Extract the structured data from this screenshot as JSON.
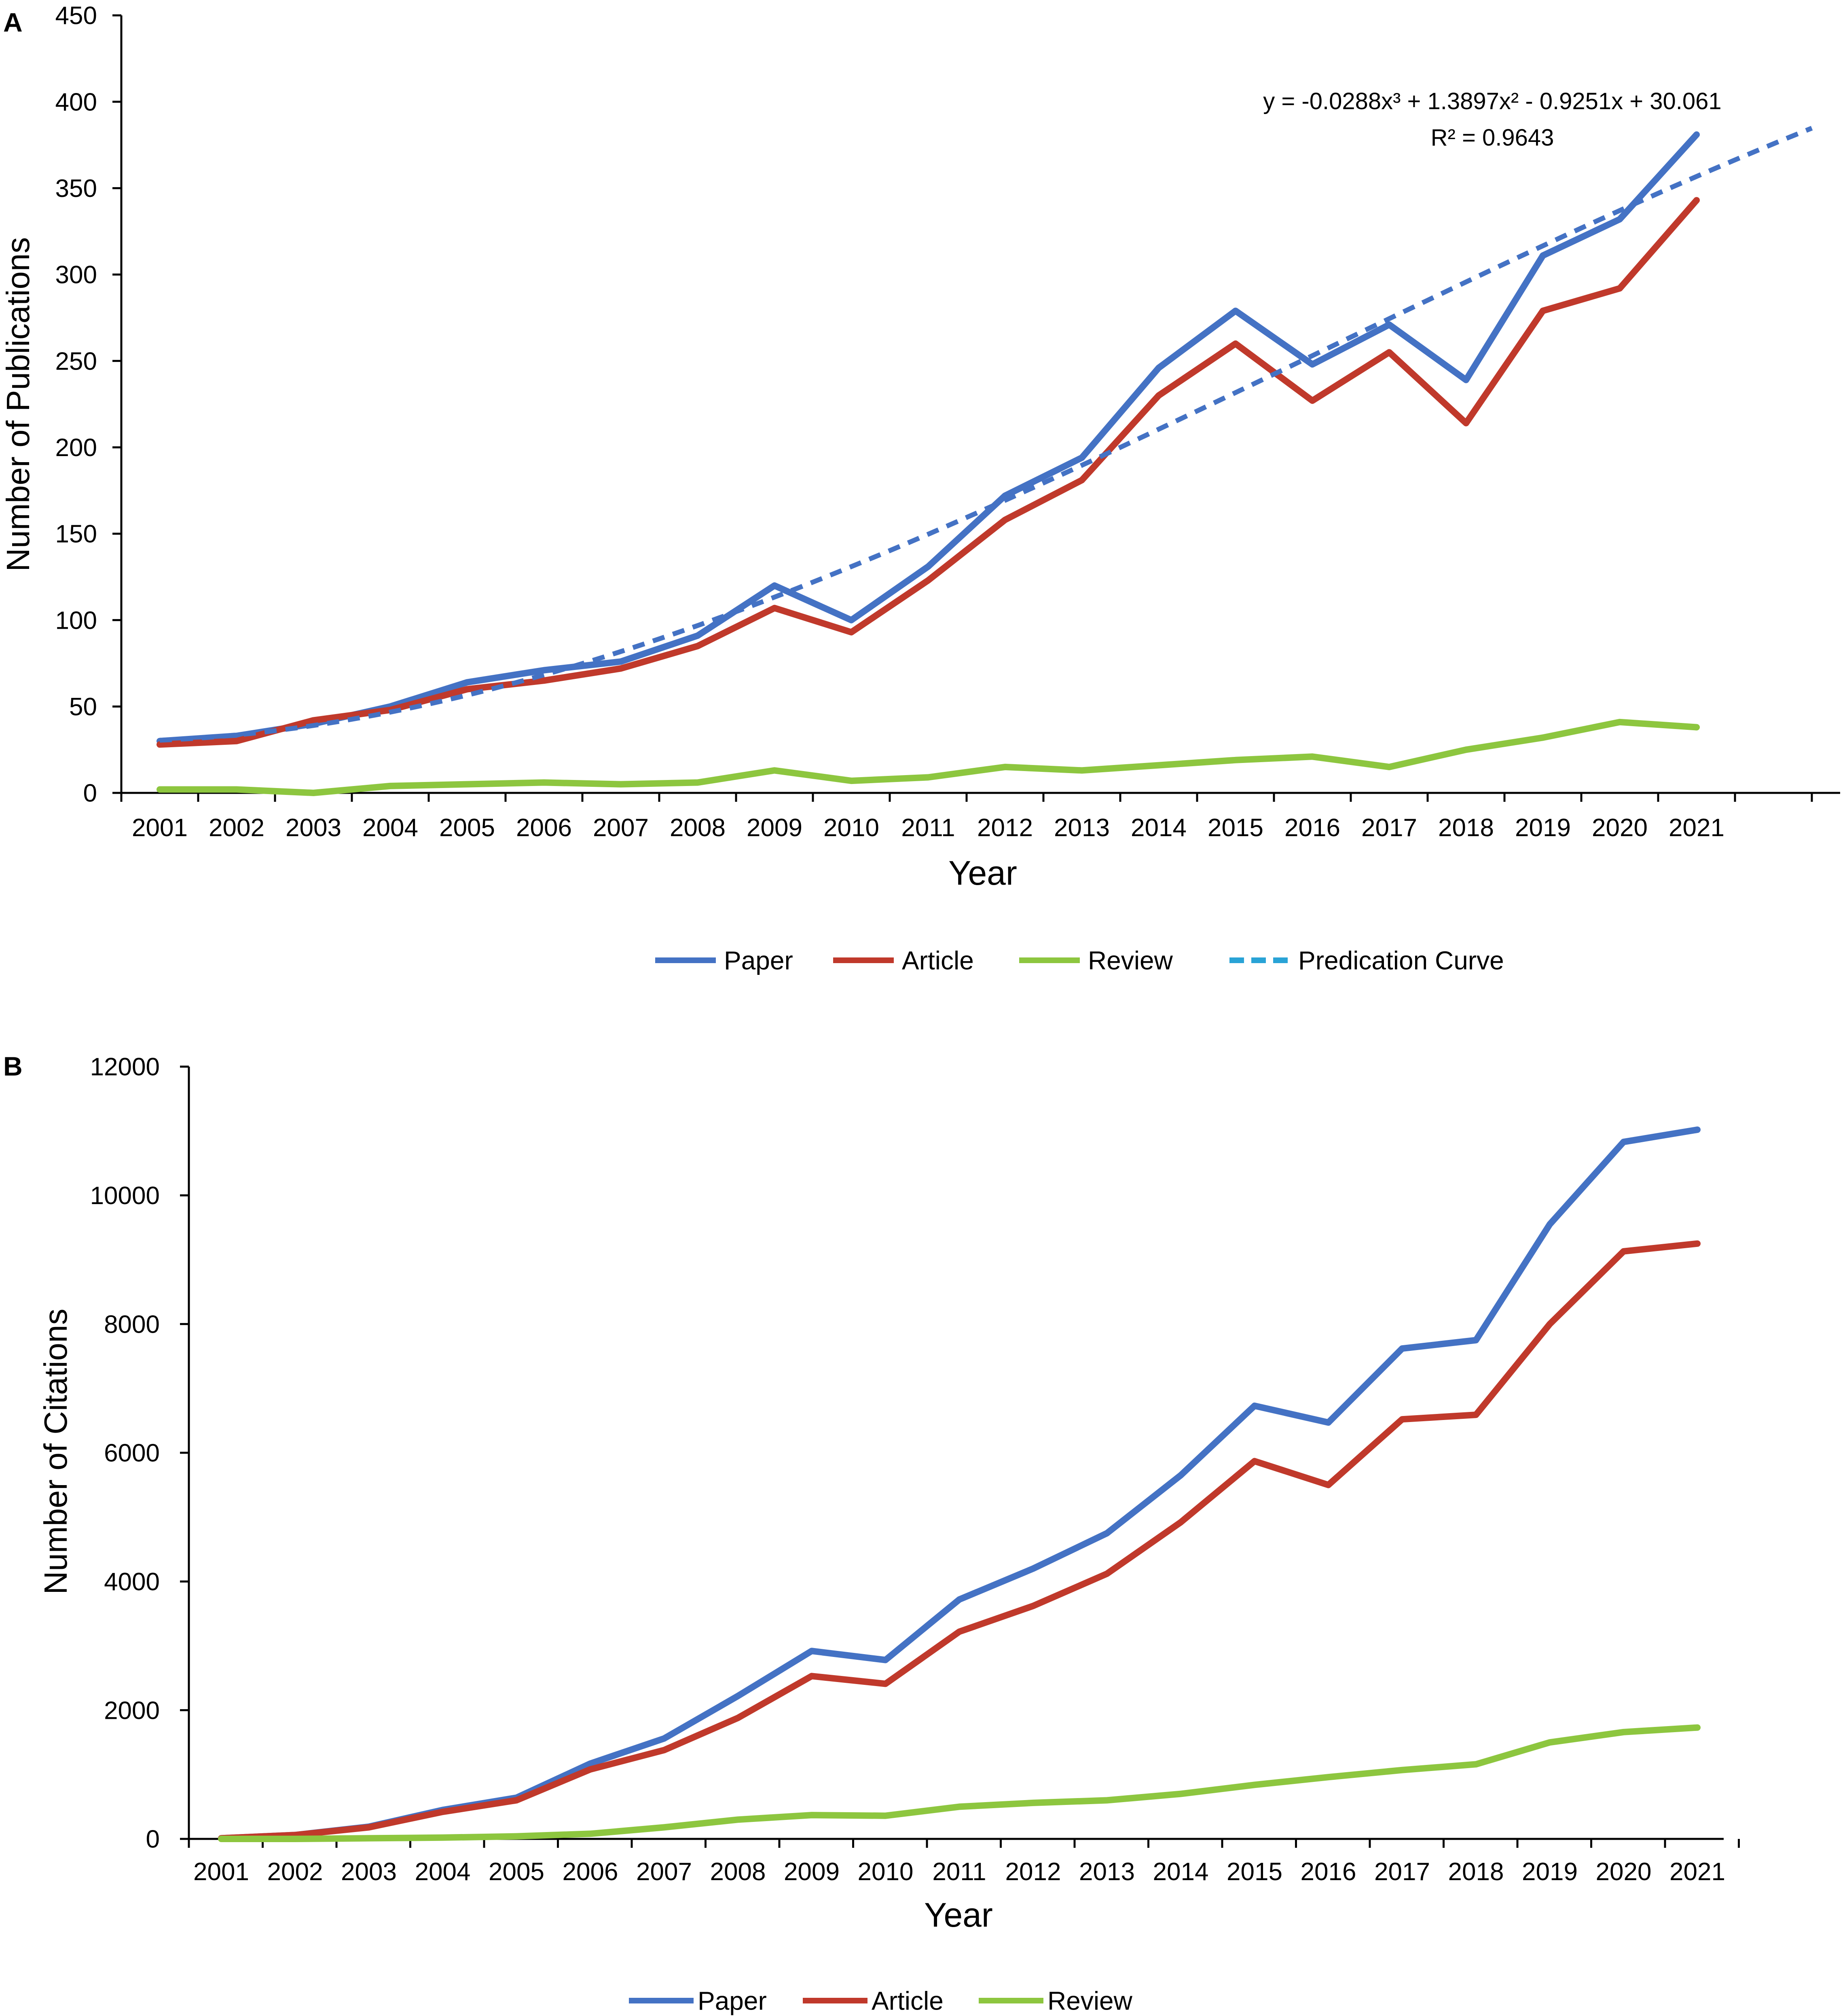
{
  "chart_data": [
    {
      "type": "line",
      "panel_label": "A",
      "categories": [
        "2001",
        "2002",
        "2003",
        "2004",
        "2005",
        "2006",
        "2007",
        "2008",
        "2009",
        "2010",
        "2011",
        "2012",
        "2013",
        "2014",
        "2015",
        "2016",
        "2017",
        "2018",
        "2019",
        "2020",
        "2021"
      ],
      "series": [
        {
          "name": "Paper",
          "color": "#4472C4",
          "style": "solid",
          "values": [
            30,
            33,
            40,
            50,
            64,
            71,
            76,
            91,
            120,
            100,
            131,
            172,
            194,
            246,
            279,
            248,
            271,
            239,
            311,
            332,
            381
          ]
        },
        {
          "name": "Article",
          "color": "#C0392B",
          "style": "solid",
          "values": [
            28,
            30,
            42,
            48,
            60,
            65,
            72,
            85,
            107,
            93,
            123,
            158,
            181,
            230,
            260,
            227,
            255,
            214,
            279,
            292,
            343
          ]
        },
        {
          "name": "Review",
          "color": "#8DC63F",
          "style": "solid",
          "values": [
            2,
            2,
            0,
            4,
            5,
            6,
            5,
            6,
            13,
            7,
            9,
            15,
            13,
            16,
            19,
            21,
            15,
            25,
            32,
            41,
            38
          ]
        },
        {
          "name": "Predication Curve",
          "color": "#4472C4",
          "style": "dashed",
          "fit": {
            "a3": -0.0288,
            "a2": 1.3897,
            "a1": -0.9251,
            "a0": 30.061
          },
          "x_max": 22.5
        }
      ],
      "equation": "y = -0.0288x³ + 1.3897x² - 0.9251x + 30.061",
      "r_squared": "R² = 0.9643",
      "xlabel": "Year",
      "ylabel": "Number of Publications",
      "ylim": [
        0,
        450
      ],
      "yticks": [
        "0",
        "50",
        "100",
        "150",
        "200",
        "250",
        "300",
        "350",
        "400",
        "450"
      ],
      "legend": [
        "Paper",
        "Article",
        "Review",
        "Predication Curve"
      ],
      "legend_position": "bottom",
      "grid": false
    },
    {
      "type": "line",
      "panel_label": "B",
      "categories": [
        "2001",
        "2002",
        "2003",
        "2004",
        "2005",
        "2006",
        "2007",
        "2008",
        "2009",
        "2010",
        "2011",
        "2012",
        "2013",
        "2014",
        "2015",
        "2016",
        "2017",
        "2018",
        "2019",
        "2020",
        "2021"
      ],
      "series": [
        {
          "name": "Paper",
          "color": "#4472C4",
          "style": "solid",
          "values": [
            10,
            60,
            190,
            450,
            640,
            1170,
            1560,
            2220,
            2920,
            2780,
            3720,
            4200,
            4750,
            5650,
            6730,
            6470,
            7620,
            7750,
            9550,
            10830,
            11020
          ]
        },
        {
          "name": "Article",
          "color": "#C0392B",
          "style": "solid",
          "values": [
            10,
            60,
            180,
            420,
            600,
            1080,
            1380,
            1880,
            2530,
            2410,
            3220,
            3620,
            4120,
            4920,
            5870,
            5500,
            6520,
            6590,
            8000,
            9130,
            9250
          ]
        },
        {
          "name": "Review",
          "color": "#8DC63F",
          "style": "solid",
          "values": [
            0,
            0,
            10,
            20,
            40,
            80,
            180,
            300,
            370,
            360,
            500,
            560,
            600,
            700,
            840,
            960,
            1070,
            1160,
            1500,
            1660,
            1730
          ]
        }
      ],
      "xlabel": "Year",
      "ylabel": "Number of Citations",
      "ylim": [
        0,
        12000
      ],
      "yticks": [
        "0",
        "2000",
        "4000",
        "6000",
        "8000",
        "10000",
        "12000"
      ],
      "legend": [
        "Paper",
        "Article",
        "Review"
      ],
      "legend_position": "bottom",
      "grid": false
    }
  ]
}
